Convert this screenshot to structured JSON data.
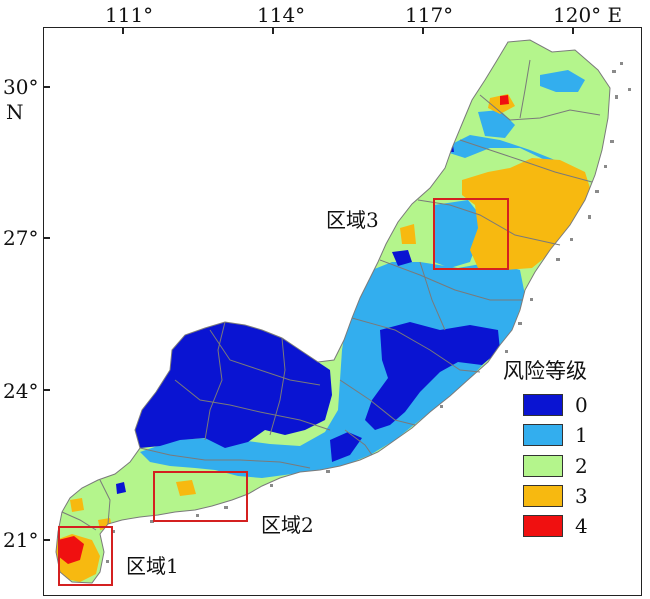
{
  "map": {
    "x_ticks": [
      "111°",
      "114°",
      "117°",
      "120° E"
    ],
    "y_ticks": [
      "30°",
      "27°",
      "24°",
      "21°"
    ],
    "y_unit": "N"
  },
  "regions": [
    {
      "label": "区域1"
    },
    {
      "label": "区域2"
    },
    {
      "label": "区域3"
    }
  ],
  "legend": {
    "title": "风险等级",
    "items": [
      {
        "label": "0",
        "color": "#0a14d2"
      },
      {
        "label": "1",
        "color": "#33aeee"
      },
      {
        "label": "2",
        "color": "#b4f58c"
      },
      {
        "label": "3",
        "color": "#f7b910"
      },
      {
        "label": "4",
        "color": "#f01010"
      }
    ]
  }
}
